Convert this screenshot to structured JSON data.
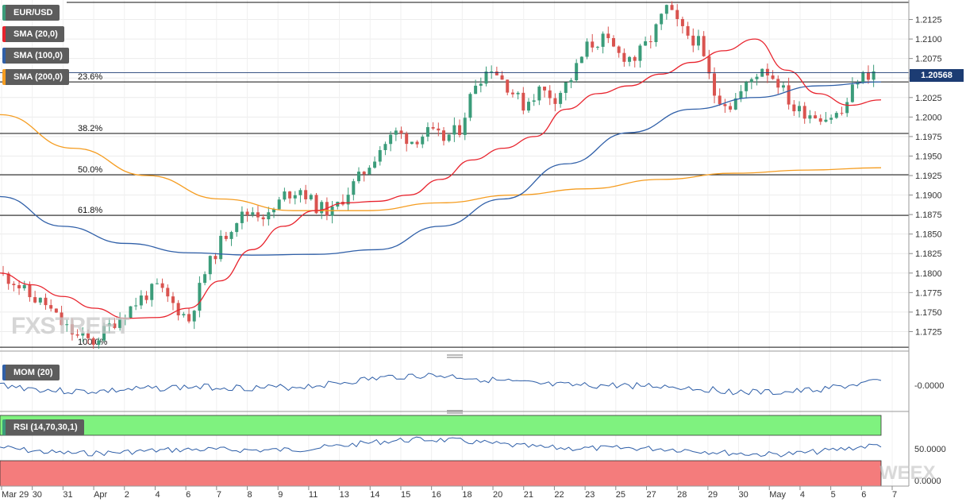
{
  "symbol": "EUR/USD",
  "legend": [
    {
      "label": "EUR/USD",
      "color": "#3b9c7a"
    },
    {
      "label": "SMA (20,0)",
      "color": "#e8232d"
    },
    {
      "label": "SMA (100,0)",
      "color": "#2f5fa8"
    },
    {
      "label": "SMA (200,0)",
      "color": "#f59d21"
    }
  ],
  "last_price": "1.20568",
  "watermark": "FXSTREET",
  "watermark_right": "WEEX",
  "colors": {
    "up": "#3b9c7a",
    "down": "#d9534f",
    "sma20": "#e8232d",
    "sma100": "#2f5fa8",
    "sma200": "#f59d21",
    "mom": "#2f5fa8",
    "rsi": "#2f5fa8"
  },
  "chart_data": {
    "type": "line",
    "ylim": [
      1.17,
      1.215
    ],
    "y_ticks": [
      "1.2125",
      "1.2100",
      "1.2075",
      "1.2050",
      "1.2025",
      "1.2000",
      "1.1975",
      "1.1950",
      "1.1925",
      "1.1900",
      "1.1875",
      "1.1850",
      "1.1825",
      "1.1800",
      "1.1775",
      "1.1750",
      "1.1725"
    ],
    "x_labels": [
      "Mar 29",
      "30",
      "31",
      "Apr",
      "2",
      "4",
      "6",
      "7",
      "8",
      "9",
      "11",
      "13",
      "14",
      "15",
      "16",
      "18",
      "20",
      "21",
      "22",
      "23",
      "25",
      "27",
      "28",
      "29",
      "30",
      "May",
      "4",
      "5",
      "6",
      "7"
    ],
    "fib_levels": [
      {
        "label": "23.6%",
        "value": 1.2045
      },
      {
        "label": "38.2%",
        "value": 1.1979
      },
      {
        "label": "50.0%",
        "value": 1.1926
      },
      {
        "label": "61.8%",
        "value": 1.1874
      },
      {
        "label": "100.0%",
        "value": 1.1705
      }
    ],
    "resistance": 1.2147,
    "close_path": [
      1.18,
      1.179,
      1.177,
      1.176,
      1.1735,
      1.1718,
      1.1712,
      1.1732,
      1.175,
      1.1768,
      1.1782,
      1.176,
      1.174,
      1.18,
      1.184,
      1.187,
      1.188,
      1.1872,
      1.19,
      1.1908,
      1.1885,
      1.1878,
      1.1905,
      1.193,
      1.196,
      1.198,
      1.197,
      1.198,
      1.1972,
      1.1985,
      1.2045,
      1.2065,
      1.204,
      1.2015,
      1.2035,
      1.2025,
      1.205,
      1.209,
      1.21,
      1.208,
      1.2075,
      1.21,
      1.214,
      1.211,
      1.2095,
      1.203,
      1.2015,
      1.204,
      1.2065,
      1.2045,
      1.201,
      1.2005,
      1.2,
      1.2005,
      1.205,
      1.2057
    ],
    "sma20_path": [
      1.18,
      1.1785,
      1.177,
      1.1755,
      1.1742,
      1.1743,
      1.1755,
      1.179,
      1.183,
      1.186,
      1.188,
      1.189,
      1.1892,
      1.19,
      1.192,
      1.1945,
      1.196,
      1.1975,
      1.201,
      1.203,
      1.204,
      1.2055,
      1.207,
      1.2085,
      1.21,
      1.206,
      1.203,
      1.2015,
      1.2022
    ],
    "sma100_path": [
      1.1898,
      1.186,
      1.1838,
      1.1826,
      1.1823,
      1.1824,
      1.183,
      1.186,
      1.1895,
      1.194,
      1.198,
      1.201,
      1.2025,
      1.204,
      1.2045
    ],
    "sma200_path": [
      1.2003,
      1.196,
      1.1925,
      1.1895,
      1.188,
      1.188,
      1.189,
      1.19,
      1.1908,
      1.192,
      1.1928,
      1.1932,
      1.1935
    ],
    "series": [
      {
        "name": "SMA (20,0)",
        "values": []
      },
      {
        "name": "SMA (100,0)",
        "values": []
      },
      {
        "name": "SMA (200,0)",
        "values": []
      }
    ]
  },
  "mom": {
    "label": "MOM (20)",
    "value_label": "-0.0000"
  },
  "rsi": {
    "label": "RSI (14,70,30,1)",
    "value_label": "50.0000",
    "zero_label": "0.0000"
  }
}
